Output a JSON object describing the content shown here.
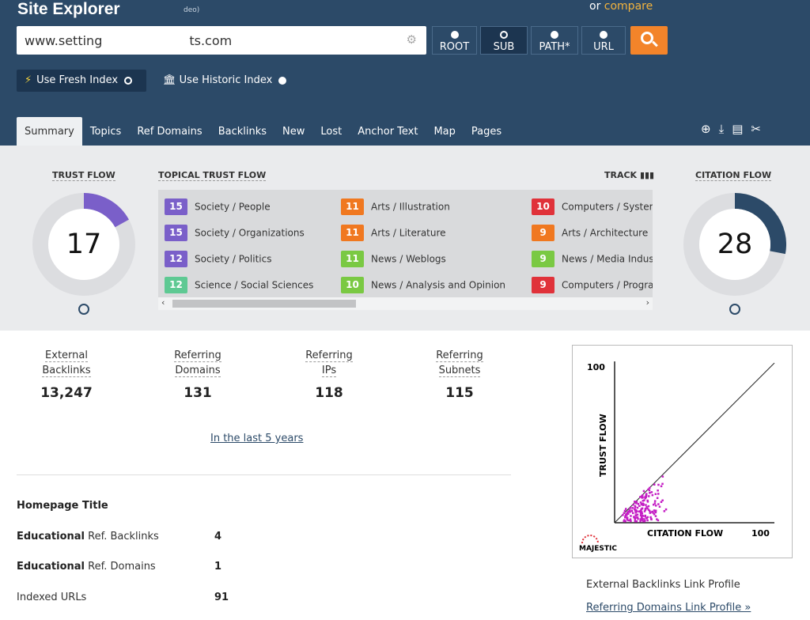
{
  "header": {
    "title": "Site Explorer",
    "video_hint": "deo)",
    "or_text": "or",
    "compare_label": "compare",
    "url_value": "www.setting",
    "url_value_tail": "ts.com",
    "modes": [
      {
        "label": "ROOT",
        "active": false
      },
      {
        "label": "SUB",
        "active": true
      },
      {
        "label": "PATH*",
        "active": false
      },
      {
        "label": "URL",
        "active": false
      }
    ],
    "fresh_index_label": "Use Fresh Index",
    "historic_index_label": "Use Historic Index"
  },
  "tabs": [
    "Summary",
    "Topics",
    "Ref Domains",
    "Backlinks",
    "New",
    "Lost",
    "Anchor Text",
    "Map",
    "Pages"
  ],
  "tools_icons": [
    "add-to-bucket-icon",
    "download-icon",
    "report-icon",
    "tools-icon"
  ],
  "summary": {
    "trust_flow_label": "TRUST FLOW",
    "trust_flow_value": "17",
    "trust_flow_fraction": 0.17,
    "topical_label": "TOPICAL TRUST FLOW",
    "track_label": "TRACK",
    "citation_flow_label": "CITATION FLOW",
    "citation_flow_value": "28",
    "citation_flow_fraction": 0.28,
    "topics": [
      {
        "value": "15",
        "label": "Society / People",
        "color": "#7a5fc9"
      },
      {
        "value": "15",
        "label": "Society / Organizations",
        "color": "#7a5fc9"
      },
      {
        "value": "12",
        "label": "Society / Politics",
        "color": "#7a5fc9"
      },
      {
        "value": "12",
        "label": "Science / Social Sciences",
        "color": "#5ec993"
      },
      {
        "value": "11",
        "label": "Arts / Illustration",
        "color": "#f07820"
      },
      {
        "value": "11",
        "label": "Arts / Literature",
        "color": "#f07820"
      },
      {
        "value": "11",
        "label": "News / Weblogs",
        "color": "#7ac943"
      },
      {
        "value": "10",
        "label": "News / Analysis and Opinion",
        "color": "#7ac943"
      },
      {
        "value": "10",
        "label": "Computers / System",
        "color": "#e0323a"
      },
      {
        "value": "9",
        "label": "Arts / Architecture",
        "color": "#f07820"
      },
      {
        "value": "9",
        "label": "News / Media Indust",
        "color": "#7ac943"
      },
      {
        "value": "9",
        "label": "Computers / Progra",
        "color": "#e0323a"
      }
    ]
  },
  "stats": [
    {
      "label1": "External",
      "label2": "Backlinks",
      "value": "13,247"
    },
    {
      "label1": "Referring",
      "label2": "Domains",
      "value": "131"
    },
    {
      "label1": "Referring",
      "label2": "IPs",
      "value": "118"
    },
    {
      "label1": "Referring",
      "label2": "Subnets",
      "value": "115"
    }
  ],
  "last_years_label": "In the last 5 years",
  "homepage_title_label": "Homepage Title",
  "edu": [
    {
      "bold": "Educational",
      "rest": " Ref. Backlinks",
      "value": "4"
    },
    {
      "bold": "Educational",
      "rest": " Ref. Domains",
      "value": "1"
    },
    {
      "bold": "",
      "rest": "Indexed URLs",
      "value": "91"
    }
  ],
  "scatter": {
    "y_label": "TRUST FLOW",
    "x_label": "CITATION FLOW",
    "y_max_label": "100",
    "x_max_label": "100",
    "brand": "MAJESTIC"
  },
  "profile_links": {
    "external": "External Backlinks Link Profile",
    "referring": "Referring Domains Link Profile »"
  }
}
